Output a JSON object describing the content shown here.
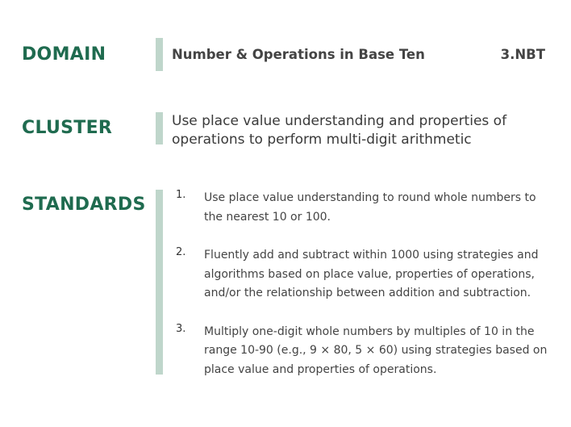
{
  "domain": {
    "label": "DOMAIN",
    "name": "Number & Operations in Base Ten",
    "code": "3.NBT"
  },
  "cluster": {
    "label": "CLUSTER",
    "text": "Use place value understanding and properties of operations to perform multi-digit arithmetic"
  },
  "standards": {
    "label": "STANDARDS",
    "items": [
      {
        "number": "1.",
        "text": "Use place value understanding to round whole numbers to the nearest 10 or 100."
      },
      {
        "number": "2.",
        "text": "Fluently add and subtract within 1000 using strategies and algorithms based on place value, properties of operations, and/or the relationship between addition and subtraction."
      },
      {
        "number": "3.",
        "text": "Multiply one-digit whole numbers by multiples of 10 in the range 10-90 (e.g., 9 × 80, 5 × 60) using strategies based on place value and properties of operations."
      }
    ]
  },
  "colors": {
    "heading_green": "#1f6b4f",
    "bar_green": "#bfd6cb",
    "text_gray": "#444444"
  }
}
